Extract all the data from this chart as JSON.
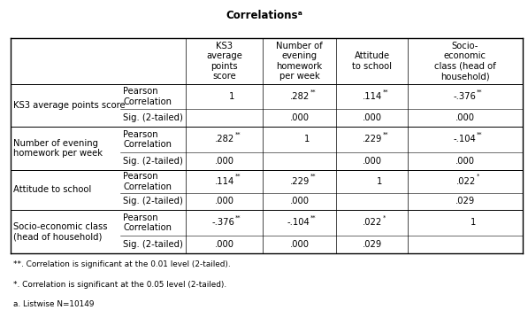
{
  "title": "Correlationsᵃ",
  "col_headers": [
    "KS3\naverage\npoints\nscore",
    "Number of\nevening\nhomework\nper week",
    "Attitude\nto school",
    "Socio-\neconomic\nclass (head of\nhousehold)"
  ],
  "row_groups": [
    {
      "label": "KS3 average points score",
      "pearson_values": [
        "1",
        ".282**",
        ".114**",
        "-.376**"
      ],
      "sig_values": [
        "",
        ".000",
        ".000",
        ".000"
      ]
    },
    {
      "label": "Number of evening\nhomework per week",
      "pearson_values": [
        ".282**",
        "1",
        ".229**",
        "-.104**"
      ],
      "sig_values": [
        ".000",
        "",
        ".000",
        ".000"
      ]
    },
    {
      "label": "Attitude to school",
      "pearson_values": [
        ".114**",
        ".229**",
        "1",
        ".022*"
      ],
      "sig_values": [
        ".000",
        ".000",
        "",
        ".029"
      ]
    },
    {
      "label": "Socio-economic class\n(head of household)",
      "pearson_values": [
        "-.376**",
        "-.104**",
        ".022*",
        "1"
      ],
      "sig_values": [
        ".000",
        ".000",
        ".029",
        ""
      ]
    }
  ],
  "footnotes": [
    "**. Correlation is significant at the 0.01 level (2-tailed).",
    "*. Correlation is significant at the 0.05 level (2-tailed).",
    "a. Listwise N=10149"
  ],
  "bg_color": "#ffffff",
  "font_size": 7.2,
  "title_font_size": 8.5
}
